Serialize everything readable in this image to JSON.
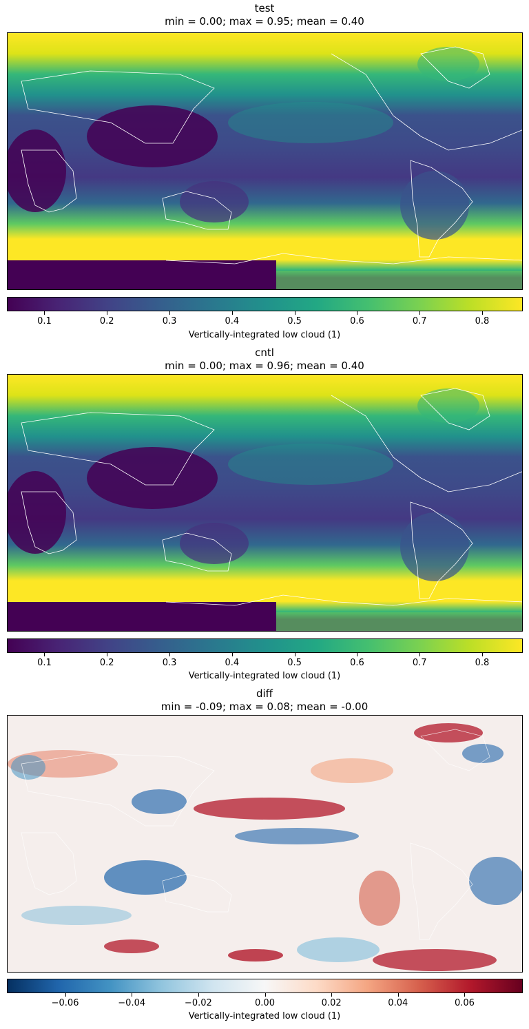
{
  "panels": [
    {
      "id": "test",
      "title": "test",
      "subtitle": "min = 0.00; max = 0.95; mean = 0.40",
      "colormap": "viridis",
      "colorbar": {
        "label": "Vertically-integrated low cloud (1)",
        "vmin": 0.04,
        "vmax": 0.865,
        "ticks": [
          "0.1",
          "0.2",
          "0.3",
          "0.4",
          "0.5",
          "0.6",
          "0.7",
          "0.8"
        ]
      }
    },
    {
      "id": "cntl",
      "title": "cntl",
      "subtitle": "min = 0.00; max = 0.96; mean = 0.40",
      "colormap": "viridis",
      "colorbar": {
        "label": "Vertically-integrated low cloud (1)",
        "vmin": 0.04,
        "vmax": 0.865,
        "ticks": [
          "0.1",
          "0.2",
          "0.3",
          "0.4",
          "0.5",
          "0.6",
          "0.7",
          "0.8"
        ]
      }
    },
    {
      "id": "diff",
      "title": "diff",
      "subtitle": "min = -0.09; max = 0.08; mean = -0.00",
      "colormap": "RdBu_r",
      "colorbar": {
        "label": "Vertically-integrated low cloud (1)",
        "vmin": -0.0775,
        "vmax": 0.0775,
        "ticks": [
          "−0.06",
          "−0.04",
          "−0.02",
          "0.00",
          "0.02",
          "0.04",
          "0.06"
        ]
      }
    }
  ],
  "chart_data": [
    {
      "type": "heatmap",
      "title": "test",
      "subtitle": "min = 0.00; max = 0.95; mean = 0.40",
      "projection": "global lat-lon map, centered on the Pacific, coastlines in white",
      "colorbar_label": "Vertically-integrated low cloud (1)",
      "colorbar_range": [
        0.04,
        0.865
      ],
      "colorbar_ticks": [
        0.1,
        0.2,
        0.3,
        0.4,
        0.5,
        0.6,
        0.7,
        0.8
      ],
      "stats": {
        "min": 0.0,
        "max": 0.95,
        "mean": 0.4
      }
    },
    {
      "type": "heatmap",
      "title": "cntl",
      "subtitle": "min = 0.00; max = 0.96; mean = 0.40",
      "projection": "global lat-lon map, centered on the Pacific, coastlines in white",
      "colorbar_label": "Vertically-integrated low cloud (1)",
      "colorbar_range": [
        0.04,
        0.865
      ],
      "colorbar_ticks": [
        0.1,
        0.2,
        0.3,
        0.4,
        0.5,
        0.6,
        0.7,
        0.8
      ],
      "stats": {
        "min": 0.0,
        "max": 0.96,
        "mean": 0.4
      }
    },
    {
      "type": "heatmap",
      "title": "diff",
      "subtitle": "min = -0.09; max = 0.08; mean = -0.00",
      "projection": "global lat-lon map, centered on the Pacific, coastlines in white",
      "colorbar_label": "Vertically-integrated low cloud (1)",
      "colorbar_range": [
        -0.0775,
        0.0775
      ],
      "colorbar_ticks": [
        -0.06,
        -0.04,
        -0.02,
        0.0,
        0.02,
        0.04,
        0.06
      ],
      "stats": {
        "min": -0.09,
        "max": 0.08,
        "mean": -0.0
      }
    }
  ]
}
